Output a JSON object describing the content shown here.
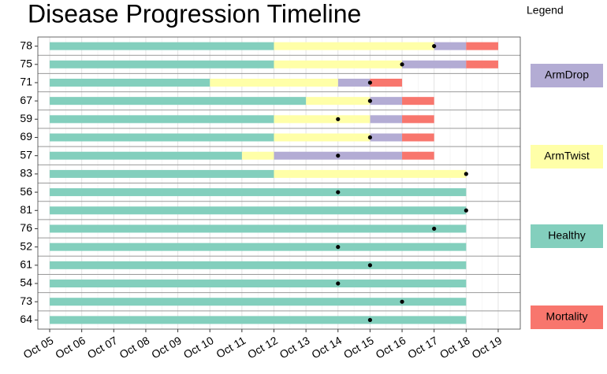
{
  "chart_data": {
    "type": "gantt",
    "title": "Disease Progression Timeline",
    "legend_title": "Legend",
    "categories": [
      "78",
      "75",
      "71",
      "67",
      "59",
      "69",
      "57",
      "83",
      "56",
      "81",
      "76",
      "52",
      "61",
      "54",
      "73",
      "64"
    ],
    "series": [
      {
        "name": "ArmDrop",
        "color": "#b3acd4",
        "start": [
          17,
          16,
          14,
          15,
          15,
          15,
          12,
          null,
          null,
          null,
          null,
          null,
          null,
          null,
          null,
          null
        ],
        "end": [
          18,
          18,
          15,
          16,
          16,
          16,
          16,
          null,
          null,
          null,
          null,
          null,
          null,
          null,
          null,
          null
        ]
      },
      {
        "name": "ArmTwist",
        "color": "#ffffa8",
        "start": [
          12,
          12,
          10,
          13,
          12,
          12,
          11,
          12,
          null,
          null,
          null,
          null,
          null,
          null,
          null,
          null
        ],
        "end": [
          17,
          16,
          14,
          15,
          15,
          15,
          12,
          18,
          null,
          null,
          null,
          null,
          null,
          null,
          null,
          null
        ]
      },
      {
        "name": "Healthy",
        "color": "#83cfbd",
        "start": [
          5,
          5,
          5,
          5,
          5,
          5,
          5,
          5,
          5,
          5,
          5,
          5,
          5,
          5,
          5,
          5
        ],
        "end": [
          12,
          12,
          10,
          13,
          12,
          12,
          11,
          12,
          18,
          18,
          18,
          18,
          18,
          18,
          18,
          18
        ]
      },
      {
        "name": "Mortality",
        "color": "#f8766d",
        "start": [
          18,
          18,
          15,
          16,
          16,
          16,
          16,
          null,
          null,
          null,
          null,
          null,
          null,
          null,
          null,
          null
        ],
        "end": [
          19,
          19,
          16,
          17,
          17,
          17,
          17,
          null,
          null,
          null,
          null,
          null,
          null,
          null,
          null,
          null
        ]
      }
    ],
    "events": [
      17,
      16,
      15,
      15,
      14,
      15,
      14,
      18,
      14,
      18,
      17,
      14,
      15,
      14,
      16,
      15
    ],
    "xlim": [
      4.63,
      19.69
    ],
    "xticks": [
      {
        "value": 5,
        "label": "Oct 05"
      },
      {
        "value": 6,
        "label": "Oct 06"
      },
      {
        "value": 7,
        "label": "Oct 07"
      },
      {
        "value": 8,
        "label": "Oct 08"
      },
      {
        "value": 9,
        "label": "Oct 09"
      },
      {
        "value": 10,
        "label": "Oct 10"
      },
      {
        "value": 11,
        "label": "Oct 11"
      },
      {
        "value": 12,
        "label": "Oct 12"
      },
      {
        "value": 13,
        "label": "Oct 13"
      },
      {
        "value": 14,
        "label": "Oct 14"
      },
      {
        "value": 15,
        "label": "Oct 15"
      },
      {
        "value": 16,
        "label": "Oct 16"
      },
      {
        "value": 17,
        "label": "Oct 17"
      },
      {
        "value": 18,
        "label": "Oct 18"
      },
      {
        "value": 19,
        "label": "Oct 19"
      }
    ],
    "grid": true
  }
}
